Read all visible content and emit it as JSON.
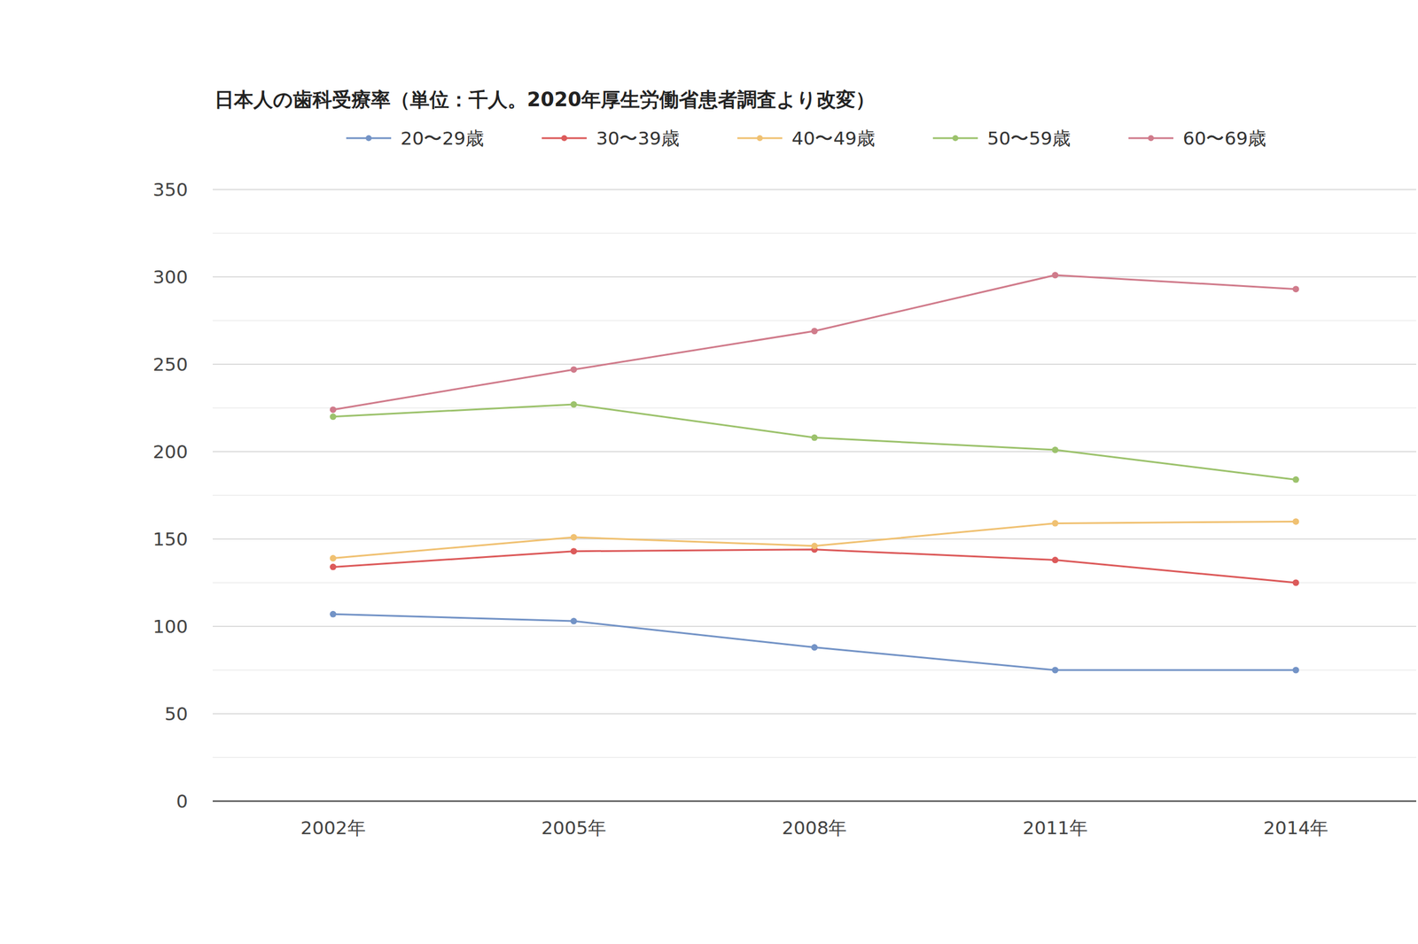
{
  "chart_data": {
    "type": "line",
    "title": "日本人の歯科受療率（単位：千人。2020年厚生労働省患者調査より改変）",
    "categories": [
      "2002年",
      "2005年",
      "2008年",
      "2011年",
      "2014年"
    ],
    "series": [
      {
        "name": "20〜29歳",
        "color": "#7393c6",
        "values": [
          107,
          103,
          88,
          75,
          75
        ]
      },
      {
        "name": "30〜39歳",
        "color": "#dc5a5a",
        "values": [
          134,
          143,
          144,
          138,
          125
        ]
      },
      {
        "name": "40〜49歳",
        "color": "#f0c172",
        "values": [
          139,
          151,
          146,
          159,
          160
        ]
      },
      {
        "name": "50〜59歳",
        "color": "#9cc26c",
        "values": [
          220,
          227,
          208,
          201,
          184
        ]
      },
      {
        "name": "60〜69歳",
        "color": "#d07b8b",
        "values": [
          224,
          247,
          269,
          301,
          293
        ]
      }
    ],
    "ylim": [
      0,
      350
    ],
    "yticks": [
      0,
      50,
      100,
      150,
      200,
      250,
      300,
      350
    ],
    "grid": true,
    "legend": "top",
    "marker": "circle"
  }
}
